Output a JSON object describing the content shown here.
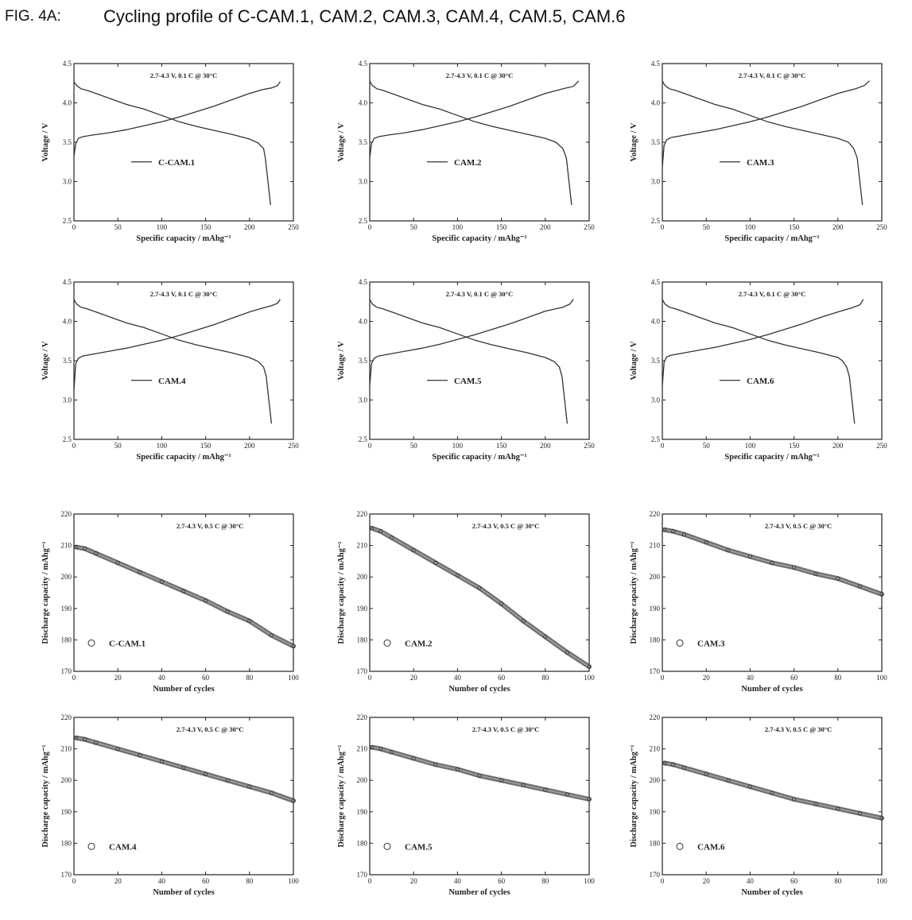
{
  "figure": {
    "label": "FIG. 4A:",
    "title": "Cycling profile of C-CAM.1, CAM.2, CAM.3, CAM.4, CAM.5, CAM.6"
  },
  "chart_data": [
    {
      "type": "line",
      "sample": "C-CAM.1",
      "legend": "C-CAM.1",
      "annotation": "2.7-4.3 V, 0.1 C @ 30°C",
      "xlabel": "Specific capacity / mAhg⁻¹",
      "ylabel": "Voltage / V",
      "xlim": [
        0,
        250
      ],
      "ylim": [
        2.5,
        4.5
      ],
      "xticks": [
        "0",
        "50",
        "100",
        "150",
        "200",
        "250"
      ],
      "yticks": [
        "2.5",
        "3.0",
        "3.5",
        "4.0",
        "4.5"
      ],
      "series": [
        {
          "x": [
            0,
            2,
            5,
            10,
            20,
            40,
            60,
            80,
            100,
            120,
            140,
            160,
            180,
            200,
            215,
            225,
            232,
            235
          ],
          "y": [
            3.32,
            3.48,
            3.55,
            3.57,
            3.59,
            3.62,
            3.66,
            3.71,
            3.76,
            3.82,
            3.89,
            3.96,
            4.04,
            4.12,
            4.17,
            4.19,
            4.22,
            4.27
          ]
        },
        {
          "x": [
            0,
            3,
            8,
            15,
            25,
            40,
            60,
            80,
            100,
            120,
            140,
            160,
            180,
            200,
            210,
            216,
            218,
            220,
            222,
            224
          ],
          "y": [
            4.27,
            4.22,
            4.18,
            4.16,
            4.12,
            4.06,
            3.98,
            3.92,
            3.84,
            3.76,
            3.7,
            3.65,
            3.6,
            3.54,
            3.49,
            3.42,
            3.3,
            3.1,
            2.9,
            2.7
          ]
        }
      ]
    },
    {
      "type": "line",
      "sample": "CAM.2",
      "legend": "CAM.2",
      "annotation": "2.7-4.3 V, 0.1 C @ 30°C",
      "xlabel": "Specific capacity / mAhg⁻¹",
      "ylabel": "Voltage / V",
      "xlim": [
        0,
        250
      ],
      "ylim": [
        2.5,
        4.5
      ],
      "xticks": [
        "0",
        "50",
        "100",
        "150",
        "200",
        "250"
      ],
      "yticks": [
        "2.5",
        "3.0",
        "3.5",
        "4.0",
        "4.5"
      ],
      "series": [
        {
          "x": [
            0,
            2,
            5,
            10,
            20,
            40,
            60,
            80,
            100,
            120,
            140,
            160,
            180,
            200,
            220,
            232,
            238
          ],
          "y": [
            3.3,
            3.48,
            3.55,
            3.57,
            3.59,
            3.62,
            3.66,
            3.71,
            3.76,
            3.82,
            3.89,
            3.96,
            4.04,
            4.12,
            4.18,
            4.21,
            4.28
          ]
        },
        {
          "x": [
            0,
            3,
            8,
            15,
            25,
            40,
            60,
            80,
            100,
            120,
            140,
            160,
            180,
            200,
            212,
            220,
            224,
            226,
            228,
            230
          ],
          "y": [
            4.28,
            4.22,
            4.18,
            4.16,
            4.12,
            4.06,
            3.98,
            3.92,
            3.84,
            3.76,
            3.7,
            3.65,
            3.6,
            3.55,
            3.5,
            3.42,
            3.3,
            3.1,
            2.9,
            2.7
          ]
        }
      ]
    },
    {
      "type": "line",
      "sample": "CAM.3",
      "legend": "CAM.3",
      "annotation": "2.7-4.3 V, 0.1 C @ 30°C",
      "xlabel": "Specific capacity / mAhg⁻¹",
      "ylabel": "Voltage / V",
      "xlim": [
        0,
        250
      ],
      "ylim": [
        2.5,
        4.5
      ],
      "xticks": [
        "0",
        "50",
        "100",
        "150",
        "200",
        "250"
      ],
      "yticks": [
        "2.5",
        "3.0",
        "3.5",
        "4.0",
        "4.5"
      ],
      "series": [
        {
          "x": [
            0,
            2,
            5,
            10,
            20,
            40,
            60,
            80,
            100,
            120,
            140,
            160,
            180,
            200,
            220,
            230,
            236
          ],
          "y": [
            3.18,
            3.46,
            3.53,
            3.56,
            3.58,
            3.62,
            3.66,
            3.71,
            3.76,
            3.82,
            3.89,
            3.96,
            4.04,
            4.12,
            4.18,
            4.22,
            4.28
          ]
        },
        {
          "x": [
            0,
            3,
            8,
            15,
            25,
            40,
            60,
            80,
            100,
            120,
            140,
            160,
            180,
            200,
            212,
            218,
            222,
            224,
            226,
            228
          ],
          "y": [
            4.28,
            4.22,
            4.18,
            4.16,
            4.12,
            4.06,
            3.98,
            3.92,
            3.84,
            3.76,
            3.7,
            3.65,
            3.6,
            3.55,
            3.5,
            3.42,
            3.3,
            3.1,
            2.9,
            2.7
          ]
        }
      ]
    },
    {
      "type": "line",
      "sample": "CAM.4",
      "legend": "CAM.4",
      "annotation": "2.7-4.3 V, 0.1 C @ 30°C",
      "xlabel": "Specific capacity / mAhg⁻¹",
      "ylabel": "Voltage / V",
      "xlim": [
        0,
        250
      ],
      "ylim": [
        2.5,
        4.5
      ],
      "xticks": [
        "0",
        "50",
        "100",
        "150",
        "200",
        "250"
      ],
      "yticks": [
        "2.5",
        "3.0",
        "3.5",
        "4.0",
        "4.5"
      ],
      "series": [
        {
          "x": [
            0,
            2,
            5,
            10,
            20,
            40,
            60,
            80,
            100,
            120,
            140,
            160,
            180,
            200,
            215,
            225,
            232,
            235
          ],
          "y": [
            3.12,
            3.46,
            3.53,
            3.56,
            3.58,
            3.62,
            3.66,
            3.71,
            3.76,
            3.82,
            3.89,
            3.96,
            4.04,
            4.12,
            4.17,
            4.2,
            4.23,
            4.28
          ]
        },
        {
          "x": [
            0,
            3,
            8,
            15,
            25,
            40,
            60,
            80,
            100,
            120,
            140,
            160,
            180,
            200,
            210,
            216,
            219,
            221,
            223,
            225
          ],
          "y": [
            4.28,
            4.22,
            4.18,
            4.16,
            4.12,
            4.06,
            3.98,
            3.92,
            3.84,
            3.76,
            3.7,
            3.65,
            3.6,
            3.54,
            3.49,
            3.42,
            3.3,
            3.1,
            2.9,
            2.7
          ]
        }
      ]
    },
    {
      "type": "line",
      "sample": "CAM.5",
      "legend": "CAM.5",
      "annotation": "2.7-4.3 V, 0.1 C @ 30°C",
      "xlabel": "Specific capacity / mAhg⁻¹",
      "ylabel": "Voltage / V",
      "xlim": [
        0,
        250
      ],
      "ylim": [
        2.5,
        4.5
      ],
      "xticks": [
        "0",
        "50",
        "100",
        "150",
        "200",
        "250"
      ],
      "yticks": [
        "2.5",
        "3.0",
        "3.5",
        "4.0",
        "4.5"
      ],
      "series": [
        {
          "x": [
            0,
            2,
            5,
            10,
            20,
            40,
            60,
            80,
            100,
            120,
            140,
            160,
            180,
            200,
            220,
            228,
            232
          ],
          "y": [
            3.18,
            3.46,
            3.53,
            3.56,
            3.58,
            3.62,
            3.66,
            3.71,
            3.77,
            3.83,
            3.9,
            3.97,
            4.05,
            4.13,
            4.18,
            4.22,
            4.28
          ]
        },
        {
          "x": [
            0,
            3,
            8,
            15,
            25,
            40,
            60,
            80,
            100,
            120,
            140,
            160,
            180,
            200,
            210,
            216,
            219,
            221,
            223,
            225
          ],
          "y": [
            4.28,
            4.22,
            4.18,
            4.16,
            4.12,
            4.06,
            3.98,
            3.92,
            3.84,
            3.76,
            3.7,
            3.65,
            3.6,
            3.54,
            3.49,
            3.42,
            3.3,
            3.1,
            2.9,
            2.7
          ]
        }
      ]
    },
    {
      "type": "line",
      "sample": "CAM.6",
      "legend": "CAM.6",
      "annotation": "2.7-4.3 V, 0.1 C @ 30°C",
      "xlabel": "Specific capacity / mAhg⁻¹",
      "ylabel": "Voltage / V",
      "xlim": [
        0,
        250
      ],
      "ylim": [
        2.5,
        4.5
      ],
      "xticks": [
        "0",
        "50",
        "100",
        "150",
        "200",
        "250"
      ],
      "yticks": [
        "2.5",
        "3.0",
        "3.5",
        "4.0",
        "4.5"
      ],
      "series": [
        {
          "x": [
            0,
            2,
            5,
            10,
            20,
            40,
            60,
            80,
            100,
            120,
            140,
            160,
            180,
            200,
            215,
            225,
            229
          ],
          "y": [
            3.18,
            3.48,
            3.55,
            3.57,
            3.59,
            3.63,
            3.67,
            3.72,
            3.77,
            3.83,
            3.9,
            3.97,
            4.05,
            4.12,
            4.17,
            4.21,
            4.28
          ]
        },
        {
          "x": [
            0,
            3,
            8,
            15,
            25,
            40,
            60,
            80,
            100,
            120,
            140,
            160,
            180,
            200,
            205,
            210,
            213,
            215,
            217,
            219
          ],
          "y": [
            4.28,
            4.22,
            4.18,
            4.16,
            4.12,
            4.06,
            3.98,
            3.92,
            3.84,
            3.76,
            3.7,
            3.65,
            3.6,
            3.54,
            3.5,
            3.42,
            3.3,
            3.1,
            2.9,
            2.7
          ]
        }
      ]
    },
    {
      "type": "scatter",
      "sample": "C-CAM.1",
      "legend": "C-CAM.1",
      "annotation": "2.7-4.3 V, 0.5 C @ 30°C",
      "xlabel": "Number of cycles",
      "ylabel": "Discharge capacity / mAhg⁻¹",
      "xlim": [
        0,
        100
      ],
      "ylim": [
        170,
        220
      ],
      "xticks": [
        "0",
        "20",
        "40",
        "60",
        "80",
        "100"
      ],
      "yticks": [
        "170",
        "180",
        "190",
        "200",
        "210",
        "220"
      ],
      "x": [
        1,
        5,
        10,
        20,
        30,
        40,
        50,
        60,
        70,
        80,
        90,
        100
      ],
      "y": [
        209.5,
        209,
        207.5,
        204.5,
        201.5,
        198.5,
        195.5,
        192.5,
        189,
        186,
        181.5,
        178
      ]
    },
    {
      "type": "scatter",
      "sample": "CAM.2",
      "legend": "CAM.2",
      "annotation": "2.7-4.3 V, 0.5 C @ 30°C",
      "xlabel": "Number of cycles",
      "ylabel": "Discharge capacity / mAhg⁻¹",
      "xlim": [
        0,
        100
      ],
      "ylim": [
        170,
        220
      ],
      "xticks": [
        "0",
        "20",
        "40",
        "60",
        "80",
        "100"
      ],
      "yticks": [
        "170",
        "180",
        "190",
        "200",
        "210",
        "220"
      ],
      "x": [
        1,
        5,
        10,
        20,
        30,
        40,
        50,
        60,
        70,
        80,
        90,
        100
      ],
      "y": [
        215.5,
        214.5,
        212.5,
        208.5,
        204.5,
        200.5,
        196.5,
        191.5,
        186,
        181,
        176,
        171.5
      ]
    },
    {
      "type": "scatter",
      "sample": "CAM.3",
      "legend": "CAM.3",
      "annotation": "2.7-4.3 V, 0.5 C @ 30°C",
      "xlabel": "Number of cycles",
      "ylabel": "Discharge capacity / mAhg⁻¹",
      "xlim": [
        0,
        100
      ],
      "ylim": [
        170,
        220
      ],
      "xticks": [
        "0",
        "20",
        "40",
        "60",
        "80",
        "100"
      ],
      "yticks": [
        "170",
        "180",
        "190",
        "200",
        "210",
        "220"
      ],
      "x": [
        1,
        5,
        10,
        20,
        30,
        40,
        50,
        60,
        70,
        80,
        90,
        100
      ],
      "y": [
        215,
        214.5,
        213.5,
        211,
        208.5,
        206.5,
        204.5,
        203,
        201,
        199.5,
        197,
        194.5
      ]
    },
    {
      "type": "scatter",
      "sample": "CAM.4",
      "legend": "CAM.4",
      "annotation": "2.7-4.3 V, 0.5 C @ 30°C",
      "xlabel": "Number of cycles",
      "ylabel": "Discharge capacity / mAhg⁻¹",
      "xlim": [
        0,
        100
      ],
      "ylim": [
        170,
        220
      ],
      "xticks": [
        "0",
        "20",
        "40",
        "60",
        "80",
        "100"
      ],
      "yticks": [
        "170",
        "180",
        "190",
        "200",
        "210",
        "220"
      ],
      "x": [
        1,
        5,
        10,
        20,
        30,
        40,
        50,
        60,
        70,
        80,
        90,
        100
      ],
      "y": [
        213.5,
        213,
        212,
        210,
        208,
        206,
        204,
        202,
        200,
        198,
        196,
        193.5
      ]
    },
    {
      "type": "scatter",
      "sample": "CAM.5",
      "legend": "CAM.5",
      "annotation": "2.7-4.3 V, 0.5 C @ 30°C",
      "xlabel": "Number of cycles",
      "ylabel": "Discharge capacity / mAhg⁻¹",
      "xlim": [
        0,
        100
      ],
      "ylim": [
        170,
        220
      ],
      "xticks": [
        "0",
        "20",
        "40",
        "60",
        "80",
        "100"
      ],
      "yticks": [
        "170",
        "180",
        "190",
        "200",
        "210",
        "220"
      ],
      "x": [
        1,
        5,
        10,
        20,
        30,
        40,
        50,
        60,
        70,
        80,
        90,
        100
      ],
      "y": [
        210.5,
        210,
        209,
        207,
        205,
        203.5,
        201.5,
        200,
        198.5,
        197,
        195.5,
        194
      ]
    },
    {
      "type": "scatter",
      "sample": "CAM.6",
      "legend": "CAM.6",
      "annotation": "2.7-4.3 V, 0.5 C @ 30°C",
      "xlabel": "Number of cycles",
      "ylabel": "Discharge capacity / mAhg⁻¹",
      "xlim": [
        0,
        100
      ],
      "ylim": [
        170,
        220
      ],
      "xticks": [
        "0",
        "20",
        "40",
        "60",
        "80",
        "100"
      ],
      "yticks": [
        "170",
        "180",
        "190",
        "200",
        "210",
        "220"
      ],
      "x": [
        1,
        5,
        10,
        20,
        30,
        40,
        50,
        60,
        70,
        80,
        90,
        100
      ],
      "y": [
        205.5,
        205,
        204,
        202,
        200,
        198,
        196,
        194,
        192.5,
        191,
        189.5,
        188
      ]
    }
  ]
}
